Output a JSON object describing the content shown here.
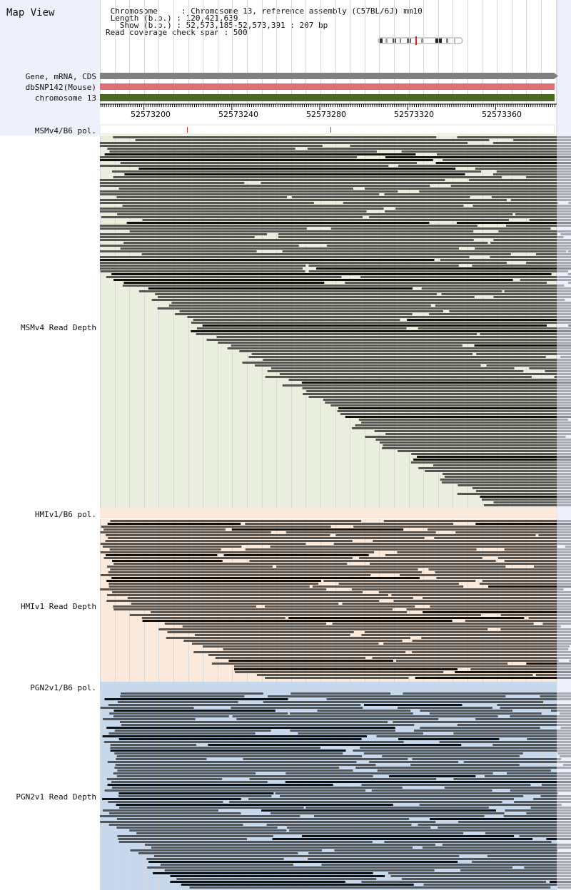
{
  "title": "Map View",
  "info": {
    "chromosome_key": "Chromosome",
    "chromosome_val": "Chromosome 13, reference assembly (C57BL/6J) mm10",
    "length_key": "Length (b.p.)",
    "length_val": "120,421,639",
    "show_key": "Show (b.p.)",
    "show_val": "52,573,185-52,573,391 : 207 bp",
    "span_line": "Read coverage check span : 500"
  },
  "tracks": {
    "gene": "Gene, mRNA, CDS",
    "snp": "dbSNP142(Mouse)",
    "chrom": "chromosome 13",
    "msm_pol": "MSMv4/B6 pol.",
    "msm_depth": "MSMv4 Read Depth",
    "hmi_pol": "HMIv1/B6 pol.",
    "hmi_depth": "HMIv1 Read Depth",
    "pgn_pol": "PGN2v1/B6 pol.",
    "pgn_depth": "PGN2v1 Read Depth"
  },
  "ruler": {
    "ticks": [
      "52573200",
      "52573240",
      "52573280",
      "52573320",
      "52573360"
    ]
  },
  "colors": {
    "gene_bar": "#808080",
    "snp_bar": "#e07078",
    "chrom_bar": "#4a6a24",
    "msm_bg": "#eaeedf",
    "hmi_bg": "#fbe9db",
    "pgn_bg": "#c8d8ec",
    "read": "#555555",
    "read_dark": "#111111",
    "side_strip": "#eef0fb"
  }
}
